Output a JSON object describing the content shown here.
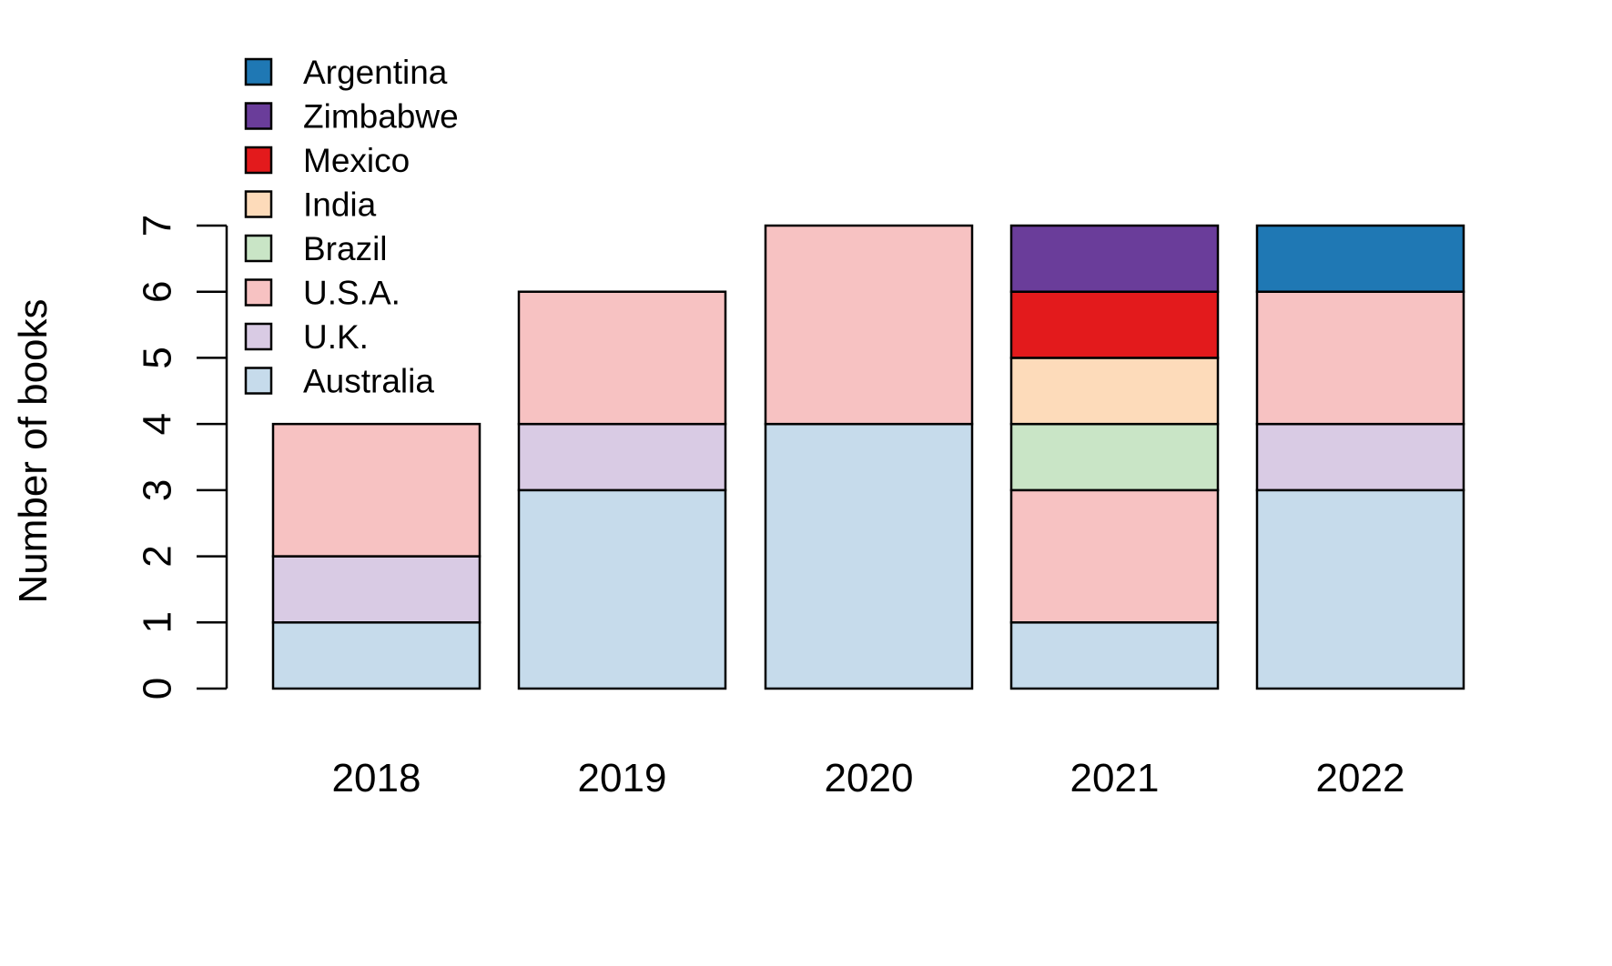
{
  "chart_data": {
    "type": "bar",
    "stacked": true,
    "title": "",
    "xlabel": "",
    "ylabel": "Number of books",
    "ylim": [
      0,
      7
    ],
    "yticks": [
      0,
      1,
      2,
      3,
      4,
      5,
      6,
      7
    ],
    "grid": false,
    "legend_position": "top-left",
    "categories": [
      "2018",
      "2019",
      "2020",
      "2021",
      "2022"
    ],
    "series": [
      {
        "name": "Australia",
        "color": "#C6DBEB",
        "values": [
          1,
          3,
          4,
          1,
          3
        ]
      },
      {
        "name": "U.K.",
        "color": "#D9CBE4",
        "values": [
          1,
          1,
          0,
          0,
          1
        ]
      },
      {
        "name": "U.S.A.",
        "color": "#F7C2C2",
        "values": [
          2,
          2,
          3,
          2,
          2
        ]
      },
      {
        "name": "Brazil",
        "color": "#C9E5C6",
        "values": [
          0,
          0,
          0,
          1,
          0
        ]
      },
      {
        "name": "India",
        "color": "#FDDBBA",
        "values": [
          0,
          0,
          0,
          1,
          0
        ]
      },
      {
        "name": "Mexico",
        "color": "#E31A1C",
        "values": [
          0,
          0,
          0,
          1,
          0
        ]
      },
      {
        "name": "Zimbabwe",
        "color": "#6A3D9A",
        "values": [
          0,
          0,
          0,
          1,
          0
        ]
      },
      {
        "name": "Argentina",
        "color": "#1F78B4",
        "values": [
          0,
          0,
          0,
          0,
          1
        ]
      }
    ]
  }
}
